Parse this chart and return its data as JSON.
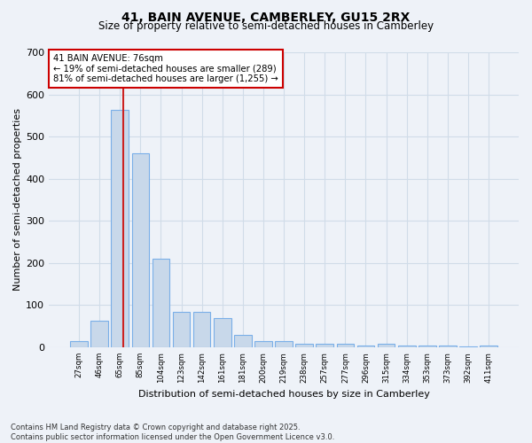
{
  "title1": "41, BAIN AVENUE, CAMBERLEY, GU15 2RX",
  "title2": "Size of property relative to semi-detached houses in Camberley",
  "xlabel": "Distribution of semi-detached houses by size in Camberley",
  "ylabel": "Number of semi-detached properties",
  "categories": [
    "27sqm",
    "46sqm",
    "65sqm",
    "85sqm",
    "104sqm",
    "123sqm",
    "142sqm",
    "161sqm",
    "181sqm",
    "200sqm",
    "219sqm",
    "238sqm",
    "257sqm",
    "277sqm",
    "296sqm",
    "315sqm",
    "334sqm",
    "353sqm",
    "373sqm",
    "392sqm",
    "411sqm"
  ],
  "values": [
    15,
    62,
    563,
    460,
    210,
    84,
    84,
    70,
    30,
    15,
    15,
    8,
    8,
    8,
    5,
    8,
    5,
    5,
    5,
    3,
    5
  ],
  "bar_color": "#c8d8ea",
  "bar_edge_color": "#7aafe8",
  "grid_color": "#d0dce8",
  "background_color": "#eef2f8",
  "red_line_x": 2.18,
  "annotation_text": "41 BAIN AVENUE: 76sqm\n← 19% of semi-detached houses are smaller (289)\n81% of semi-detached houses are larger (1,255) →",
  "annotation_box_color": "#ffffff",
  "annotation_box_edge": "#cc0000",
  "footnote": "Contains HM Land Registry data © Crown copyright and database right 2025.\nContains public sector information licensed under the Open Government Licence v3.0.",
  "ylim": [
    0,
    700
  ],
  "yticks": [
    0,
    100,
    200,
    300,
    400,
    500,
    600,
    700
  ]
}
